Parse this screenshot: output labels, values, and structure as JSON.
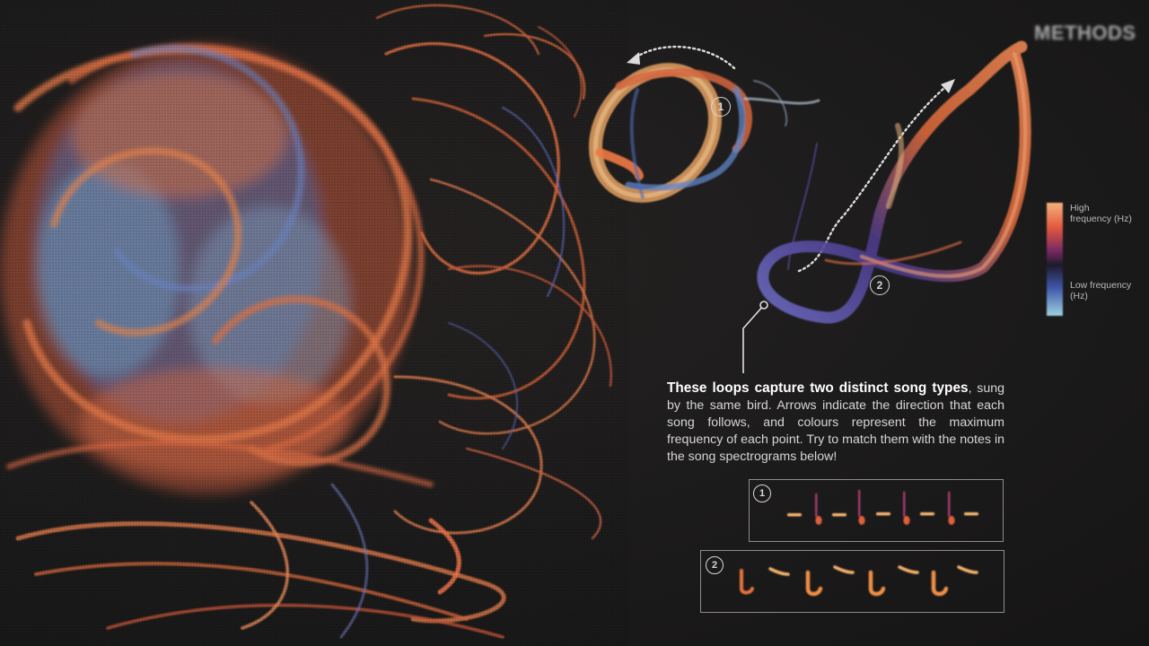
{
  "header": {
    "title": "METHODS"
  },
  "legend": {
    "high_label": "High frequency (Hz)",
    "low_label": "Low frequency (Hz)",
    "colors": [
      "#f5b27a",
      "#e2573e",
      "#7a2a63",
      "#1e1a2a",
      "#3e55a8",
      "#9fd0df"
    ]
  },
  "loops": [
    {
      "number": "1",
      "arrow": "dotted-arrow-left"
    },
    {
      "number": "2",
      "arrow": "dotted-arrow-up-right"
    }
  ],
  "caption": {
    "lead": "These loops capture two distinct song types",
    "body": ", sung by the same bird. Arrows indicate the direction that each song follows, and colours represent the maximum frequency of each point. Try to match them with the notes in the song spectrograms below!"
  },
  "spectrograms": [
    {
      "number": "1",
      "pattern": "dash-and-stroke",
      "repeats": 5
    },
    {
      "number": "2",
      "pattern": "hook-and-dash",
      "repeats": 4
    }
  ]
}
